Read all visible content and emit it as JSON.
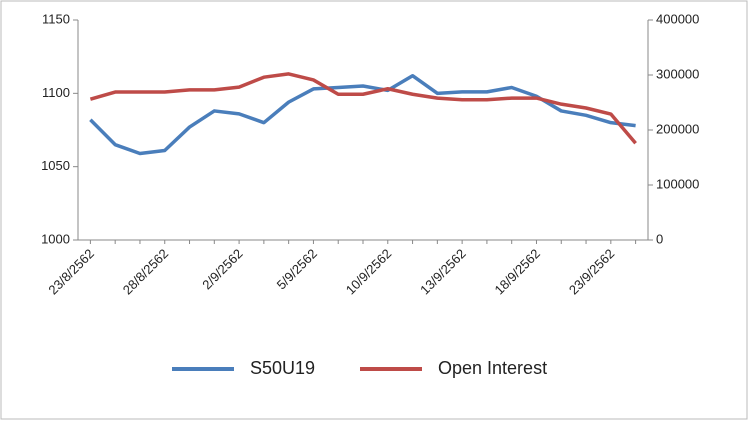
{
  "chart_data": {
    "type": "line",
    "categories": [
      "23/8/2562",
      null,
      null,
      "28/8/2562",
      null,
      null,
      "2/9/2562",
      null,
      null,
      "5/9/2562",
      null,
      null,
      "10/9/2562",
      null,
      null,
      "13/9/2562",
      null,
      null,
      "18/9/2562",
      null,
      null,
      "23/9/2562",
      null
    ],
    "series": [
      {
        "name": "S50U19",
        "color": "#4a7ebb",
        "values": [
          1082,
          1065,
          1059,
          1061,
          1077,
          1088,
          1086,
          1080,
          1094,
          1103,
          1104,
          1105,
          1102,
          1112,
          1100,
          1101,
          1101,
          1104,
          1098,
          1088,
          1085,
          1080,
          1078
        ]
      },
      {
        "name": "Open Interest",
        "color": "#be4b48",
        "axis": "y2",
        "values": [
          256000,
          269000,
          269000,
          269000,
          273000,
          273000,
          278000,
          296000,
          302000,
          291000,
          265000,
          265000,
          275000,
          265000,
          258000,
          255000,
          255000,
          258000,
          258000,
          247000,
          240000,
          229000,
          176000
        ]
      }
    ],
    "ylim": [
      1000,
      1150
    ],
    "yticks": [
      1000,
      1050,
      1100,
      1150
    ],
    "y2lim": [
      0,
      400000
    ],
    "y2ticks": [
      0,
      100000,
      200000,
      300000,
      400000
    ],
    "legend": "bottom"
  }
}
